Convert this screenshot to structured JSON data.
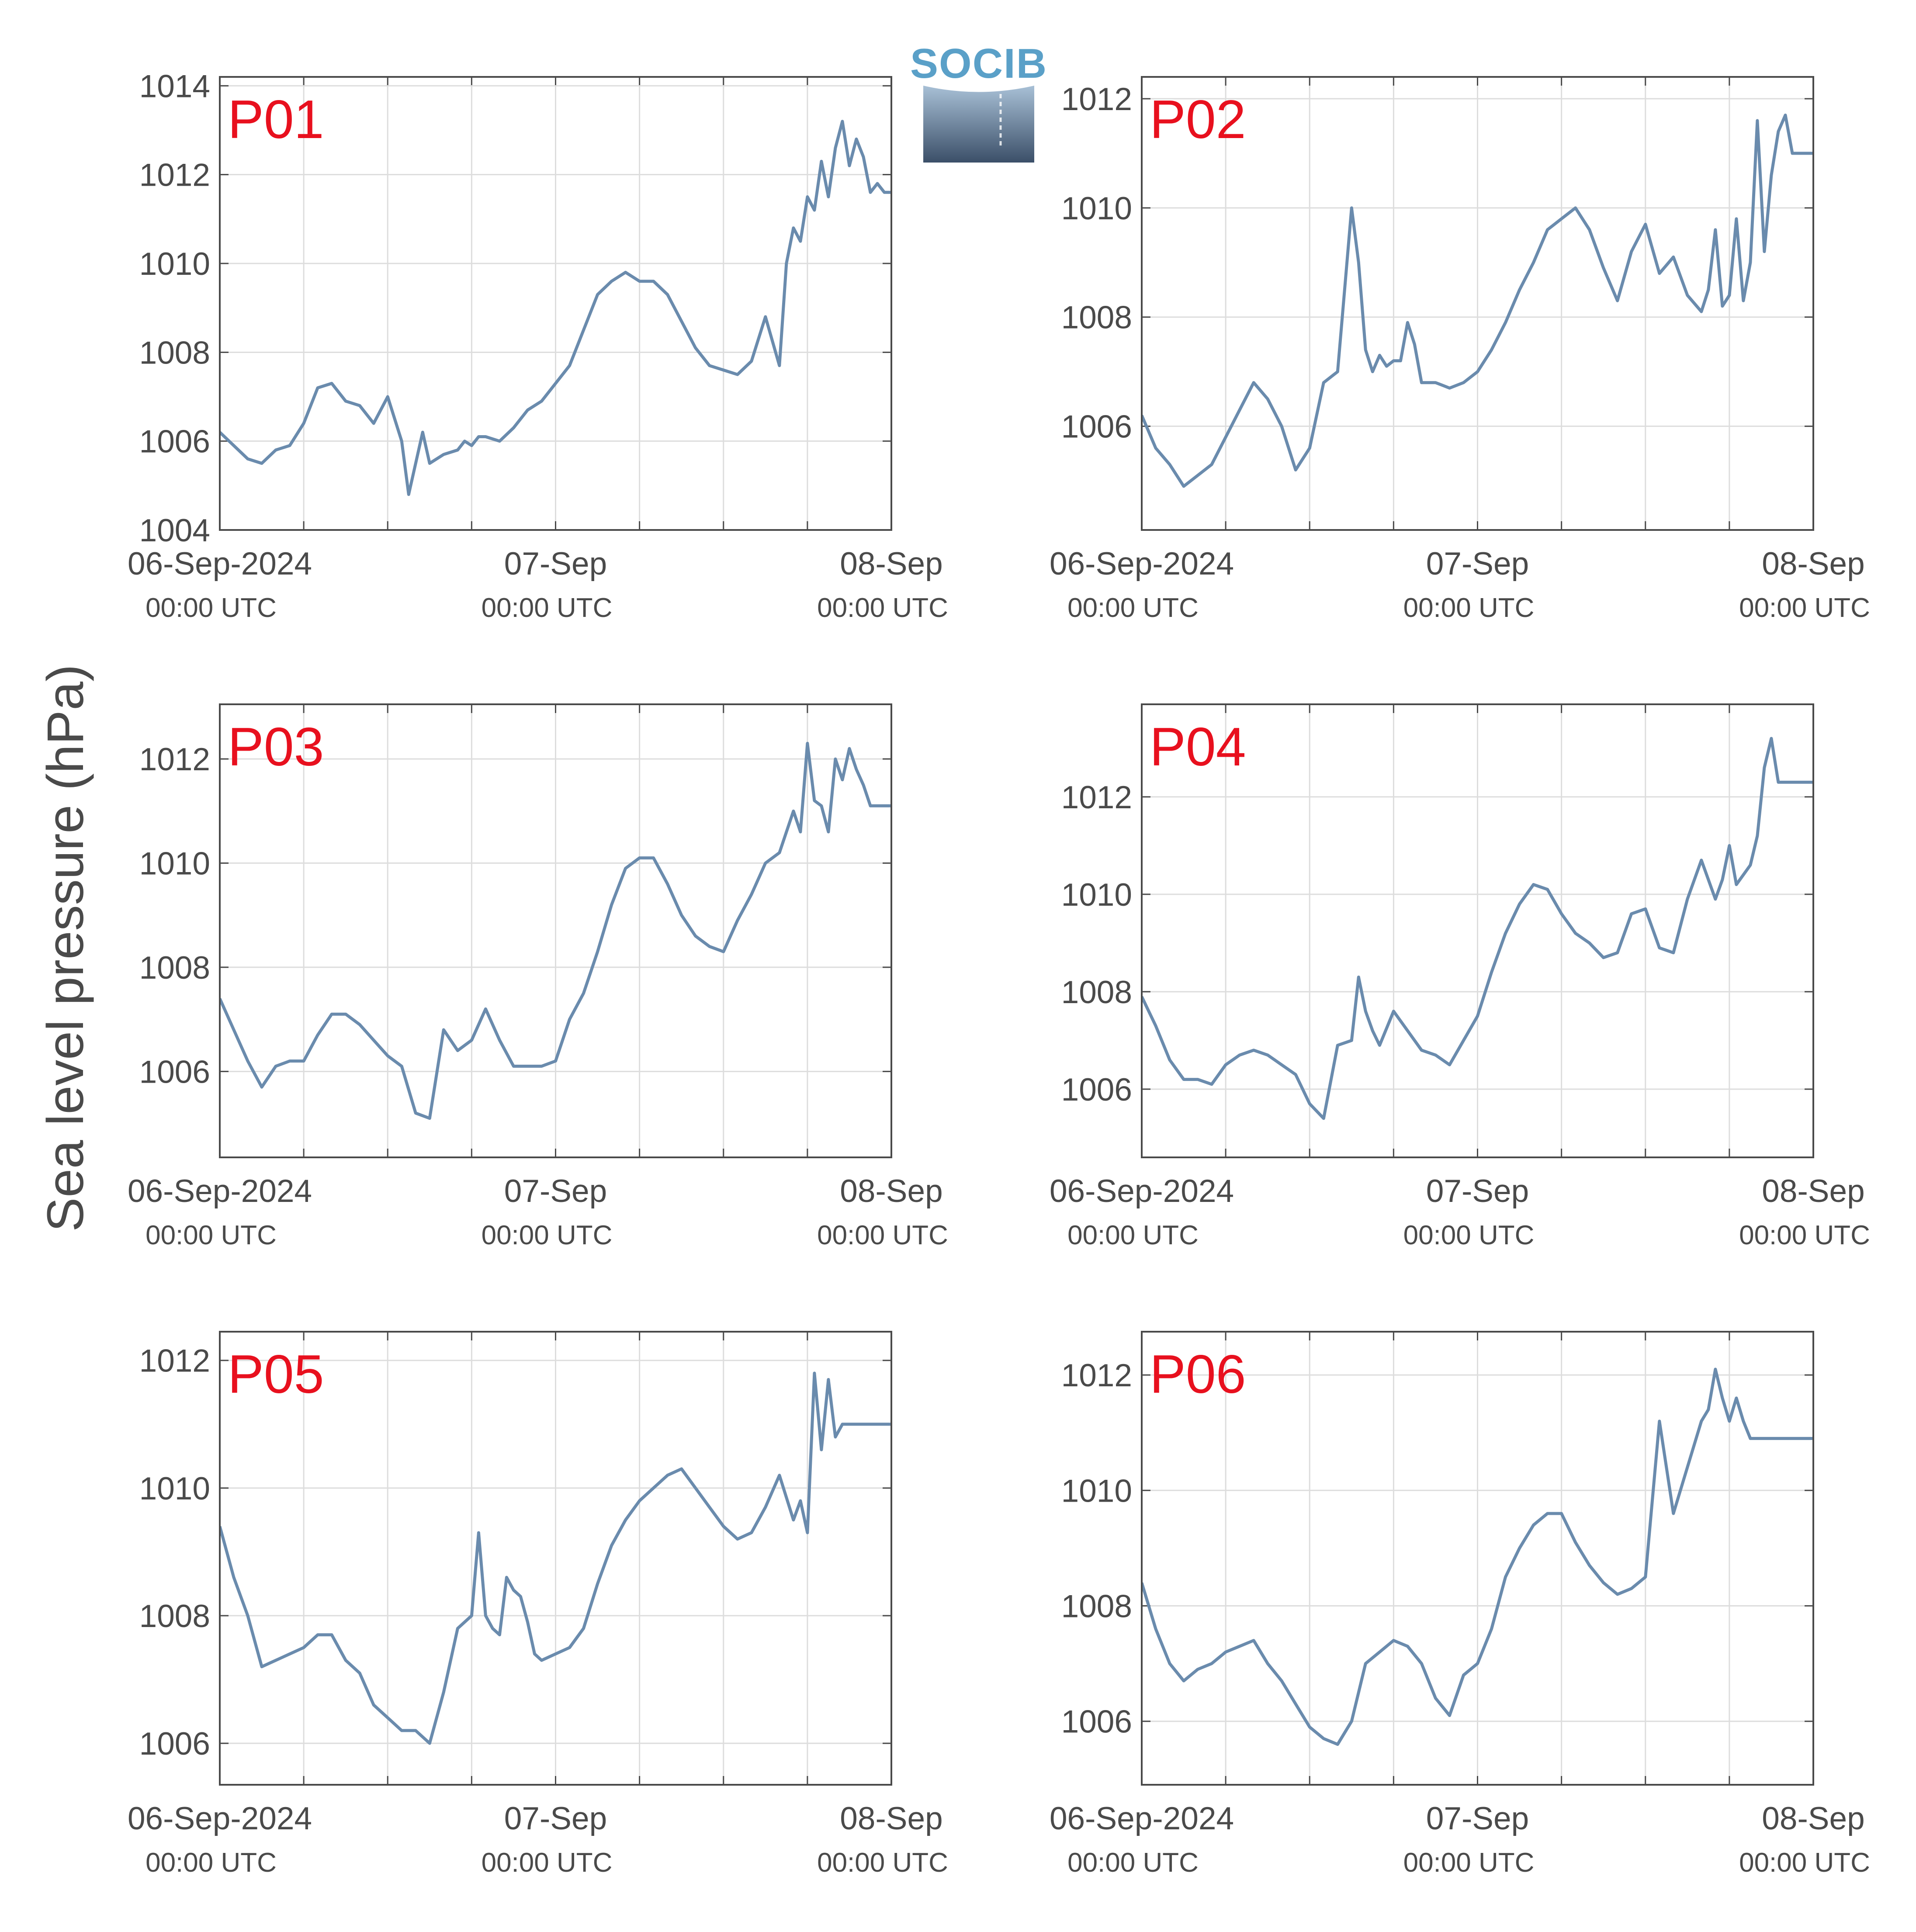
{
  "figure": {
    "ylabel": "Sea level pressure (hPa)",
    "logo_text": "SOCIB",
    "colors": {
      "line": "#6a8bad",
      "panel_label": "#e8101e",
      "grid": "#dddddd",
      "axis": "#4a4a4a",
      "text": "#4a4a4a"
    },
    "x_tick_dates": [
      "06-Sep-2024",
      "07-Sep",
      "08-Sep"
    ],
    "x_tick_times": [
      "00:00 UTC",
      "00:00 UTC",
      "00:00 UTC"
    ]
  },
  "chart_data": [
    {
      "type": "line",
      "name": "P01",
      "x_unit": "hours since 06-Sep-2024 00:00 UTC",
      "xlim": [
        0,
        48
      ],
      "ylim": [
        1004,
        1014.2
      ],
      "yticks": [
        1004,
        1006,
        1008,
        1010,
        1012,
        1014
      ],
      "x": [
        0,
        1,
        2,
        3,
        4,
        5,
        6,
        7,
        8,
        9,
        10,
        11,
        12,
        13,
        13.5,
        14,
        14.5,
        15,
        16,
        17,
        17.5,
        18,
        18.5,
        19,
        20,
        21,
        22,
        23,
        24,
        25,
        26,
        27,
        28,
        29,
        30,
        31,
        32,
        33,
        34,
        35,
        36,
        37,
        38,
        39,
        40,
        40.5,
        41,
        41.5,
        42,
        42.5,
        43,
        43.5,
        44,
        44.5,
        45,
        45.5,
        46,
        46.5,
        47,
        47.5,
        48
      ],
      "y": [
        1006.2,
        1005.9,
        1005.6,
        1005.5,
        1005.8,
        1005.9,
        1006.4,
        1007.2,
        1007.3,
        1006.9,
        1006.8,
        1006.4,
        1007.0,
        1006.0,
        1004.8,
        1005.5,
        1006.2,
        1005.5,
        1005.7,
        1005.8,
        1006.0,
        1005.9,
        1006.1,
        1006.1,
        1006.0,
        1006.3,
        1006.7,
        1006.9,
        1007.3,
        1007.7,
        1008.5,
        1009.3,
        1009.6,
        1009.8,
        1009.6,
        1009.6,
        1009.3,
        1008.7,
        1008.1,
        1007.7,
        1007.6,
        1007.5,
        1007.8,
        1008.8,
        1007.7,
        1010.0,
        1010.8,
        1010.5,
        1011.5,
        1011.2,
        1012.3,
        1011.5,
        1012.6,
        1013.2,
        1012.2,
        1012.8,
        1012.4,
        1011.6,
        1011.8,
        1011.6,
        1011.6
      ]
    },
    {
      "type": "line",
      "name": "P02",
      "x_unit": "hours since 06-Sep-2024 00:00 UTC",
      "xlim": [
        0,
        48
      ],
      "ylim": [
        1004.1,
        1012.4
      ],
      "yticks": [
        1006,
        1008,
        1010,
        1012
      ],
      "x": [
        0,
        1,
        2,
        3,
        4,
        5,
        6,
        7,
        8,
        9,
        10,
        11,
        12,
        13,
        14,
        15,
        15.5,
        16,
        16.5,
        17,
        17.5,
        18,
        18.5,
        19,
        19.5,
        20,
        21,
        22,
        23,
        24,
        25,
        26,
        27,
        28,
        29,
        30,
        31,
        32,
        33,
        34,
        35,
        36,
        37,
        38,
        39,
        40,
        40.5,
        41,
        41.5,
        42,
        42.5,
        43,
        43.5,
        44,
        44.5,
        45,
        45.5,
        46,
        46.5,
        47,
        47.5,
        48
      ],
      "y": [
        1006.2,
        1005.6,
        1005.3,
        1004.9,
        1005.1,
        1005.3,
        1005.8,
        1006.3,
        1006.8,
        1006.5,
        1006.0,
        1005.2,
        1005.6,
        1006.8,
        1007.0,
        1010.0,
        1009.0,
        1007.4,
        1007.0,
        1007.3,
        1007.1,
        1007.2,
        1007.2,
        1007.9,
        1007.5,
        1006.8,
        1006.8,
        1006.7,
        1006.8,
        1007.0,
        1007.4,
        1007.9,
        1008.5,
        1009.0,
        1009.6,
        1009.8,
        1010.0,
        1009.6,
        1008.9,
        1008.3,
        1009.2,
        1009.7,
        1008.8,
        1009.1,
        1008.4,
        1008.1,
        1008.5,
        1009.6,
        1008.2,
        1008.4,
        1009.8,
        1008.3,
        1009.0,
        1011.6,
        1009.2,
        1010.6,
        1011.4,
        1011.7,
        1011.0,
        1011.0,
        1011.0,
        1011.0
      ]
    },
    {
      "type": "line",
      "name": "P03",
      "x_unit": "hours since 06-Sep-2024 00:00 UTC",
      "xlim": [
        0,
        48
      ],
      "ylim": [
        1004.35,
        1013.05
      ],
      "yticks": [
        1006,
        1008,
        1010,
        1012
      ],
      "x": [
        0,
        1,
        2,
        3,
        4,
        5,
        6,
        7,
        8,
        9,
        10,
        11,
        12,
        13,
        14,
        15,
        16,
        17,
        18,
        19,
        20,
        21,
        22,
        23,
        24,
        25,
        26,
        27,
        28,
        29,
        30,
        31,
        32,
        33,
        34,
        35,
        36,
        37,
        38,
        39,
        40,
        41,
        41.5,
        42,
        42.5,
        43,
        43.5,
        44,
        44.5,
        45,
        45.5,
        46,
        46.5,
        47,
        47.5,
        48
      ],
      "y": [
        1007.4,
        1006.8,
        1006.2,
        1005.7,
        1006.1,
        1006.2,
        1006.2,
        1006.7,
        1007.1,
        1007.1,
        1006.9,
        1006.6,
        1006.3,
        1006.1,
        1005.2,
        1005.1,
        1006.8,
        1006.4,
        1006.6,
        1007.2,
        1006.6,
        1006.1,
        1006.1,
        1006.1,
        1006.2,
        1007.0,
        1007.5,
        1008.3,
        1009.2,
        1009.9,
        1010.1,
        1010.1,
        1009.6,
        1009.0,
        1008.6,
        1008.4,
        1008.3,
        1008.9,
        1009.4,
        1010.0,
        1010.2,
        1011.0,
        1010.6,
        1012.3,
        1011.2,
        1011.1,
        1010.6,
        1012.0,
        1011.6,
        1012.2,
        1011.8,
        1011.5,
        1011.1,
        1011.1,
        1011.1,
        1011.1
      ]
    },
    {
      "type": "line",
      "name": "P04",
      "x_unit": "hours since 06-Sep-2024 00:00 UTC",
      "xlim": [
        0,
        48
      ],
      "ylim": [
        1004.6,
        1013.9
      ],
      "yticks": [
        1006,
        1008,
        1010,
        1012
      ],
      "x": [
        0,
        1,
        2,
        3,
        4,
        5,
        6,
        7,
        8,
        9,
        10,
        11,
        12,
        13,
        14,
        15,
        15.5,
        16,
        16.5,
        17,
        18,
        19,
        20,
        21,
        22,
        23,
        24,
        25,
        26,
        27,
        28,
        29,
        30,
        31,
        32,
        33,
        34,
        35,
        36,
        37,
        38,
        39,
        40,
        41,
        41.5,
        42,
        42.5,
        43,
        43.5,
        44,
        44.5,
        45,
        45.5,
        46,
        46.5,
        47,
        47.5,
        48
      ],
      "y": [
        1007.9,
        1007.3,
        1006.6,
        1006.2,
        1006.2,
        1006.1,
        1006.5,
        1006.7,
        1006.8,
        1006.7,
        1006.5,
        1006.3,
        1005.7,
        1005.4,
        1006.9,
        1007.0,
        1008.3,
        1007.6,
        1007.2,
        1006.9,
        1007.6,
        1007.2,
        1006.8,
        1006.7,
        1006.5,
        1007.0,
        1007.5,
        1008.4,
        1009.2,
        1009.8,
        1010.2,
        1010.1,
        1009.6,
        1009.2,
        1009.0,
        1008.7,
        1008.8,
        1009.6,
        1009.7,
        1008.9,
        1008.8,
        1009.9,
        1010.7,
        1009.9,
        1010.3,
        1011.0,
        1010.2,
        1010.4,
        1010.6,
        1011.2,
        1012.6,
        1013.2,
        1012.3,
        1012.3,
        1012.3,
        1012.3,
        1012.3,
        1012.3
      ]
    },
    {
      "type": "line",
      "name": "P05",
      "x_unit": "hours since 06-Sep-2024 00:00 UTC",
      "xlim": [
        0,
        48
      ],
      "ylim": [
        1005.35,
        1012.45
      ],
      "yticks": [
        1006,
        1008,
        1010,
        1012
      ],
      "x": [
        0,
        1,
        2,
        3,
        4,
        5,
        6,
        7,
        8,
        9,
        10,
        11,
        12,
        13,
        14,
        15,
        16,
        17,
        18,
        18.5,
        19,
        19.5,
        20,
        20.5,
        21,
        21.5,
        22,
        22.5,
        23,
        24,
        25,
        26,
        27,
        28,
        29,
        30,
        31,
        32,
        33,
        34,
        35,
        36,
        37,
        38,
        39,
        40,
        41,
        41.5,
        42,
        42.5,
        43,
        43.5,
        44,
        44.5,
        45,
        45.5,
        46,
        46.5,
        47,
        47.5,
        48
      ],
      "y": [
        1009.4,
        1008.6,
        1008.0,
        1007.2,
        1007.3,
        1007.4,
        1007.5,
        1007.7,
        1007.7,
        1007.3,
        1007.1,
        1006.6,
        1006.4,
        1006.2,
        1006.2,
        1006.0,
        1006.8,
        1007.8,
        1008.0,
        1009.3,
        1008.0,
        1007.8,
        1007.7,
        1008.6,
        1008.4,
        1008.3,
        1007.9,
        1007.4,
        1007.3,
        1007.4,
        1007.5,
        1007.8,
        1008.5,
        1009.1,
        1009.5,
        1009.8,
        1010.0,
        1010.2,
        1010.3,
        1010.0,
        1009.7,
        1009.4,
        1009.2,
        1009.3,
        1009.7,
        1010.2,
        1009.5,
        1009.8,
        1009.3,
        1011.8,
        1010.6,
        1011.7,
        1010.8,
        1011.0,
        1011.0,
        1011.0,
        1011.0,
        1011.0,
        1011.0,
        1011.0,
        1011.0
      ]
    },
    {
      "type": "line",
      "name": "P06",
      "x_unit": "hours since 06-Sep-2024 00:00 UTC",
      "xlim": [
        0,
        48
      ],
      "ylim": [
        1004.9,
        1012.75
      ],
      "yticks": [
        1006,
        1008,
        1010,
        1012
      ],
      "x": [
        0,
        1,
        2,
        3,
        4,
        5,
        6,
        7,
        8,
        9,
        10,
        11,
        12,
        13,
        14,
        15,
        16,
        16.5,
        17,
        18,
        19,
        20,
        21,
        22,
        23,
        24,
        25,
        26,
        27,
        28,
        29,
        30,
        31,
        32,
        33,
        34,
        35,
        36,
        37,
        38,
        39,
        40,
        40.5,
        41,
        41.5,
        42,
        42.5,
        43,
        43.5,
        44,
        44.5,
        45,
        45.5,
        46,
        46.5,
        47,
        47.5,
        48
      ],
      "y": [
        1008.4,
        1007.6,
        1007.0,
        1006.7,
        1006.9,
        1007.0,
        1007.2,
        1007.3,
        1007.4,
        1007.0,
        1006.7,
        1006.3,
        1005.9,
        1005.7,
        1005.6,
        1006.0,
        1007.0,
        1007.1,
        1007.2,
        1007.4,
        1007.3,
        1007.0,
        1006.4,
        1006.1,
        1006.8,
        1007.0,
        1007.6,
        1008.5,
        1009.0,
        1009.4,
        1009.6,
        1009.6,
        1009.1,
        1008.7,
        1008.4,
        1008.2,
        1008.3,
        1008.5,
        1011.2,
        1009.6,
        1010.4,
        1011.2,
        1011.4,
        1012.1,
        1011.6,
        1011.2,
        1011.6,
        1011.2,
        1010.9,
        1010.9,
        1010.9,
        1010.9,
        1010.9,
        1010.9,
        1010.9,
        1010.9,
        1010.9,
        1010.9
      ]
    }
  ]
}
